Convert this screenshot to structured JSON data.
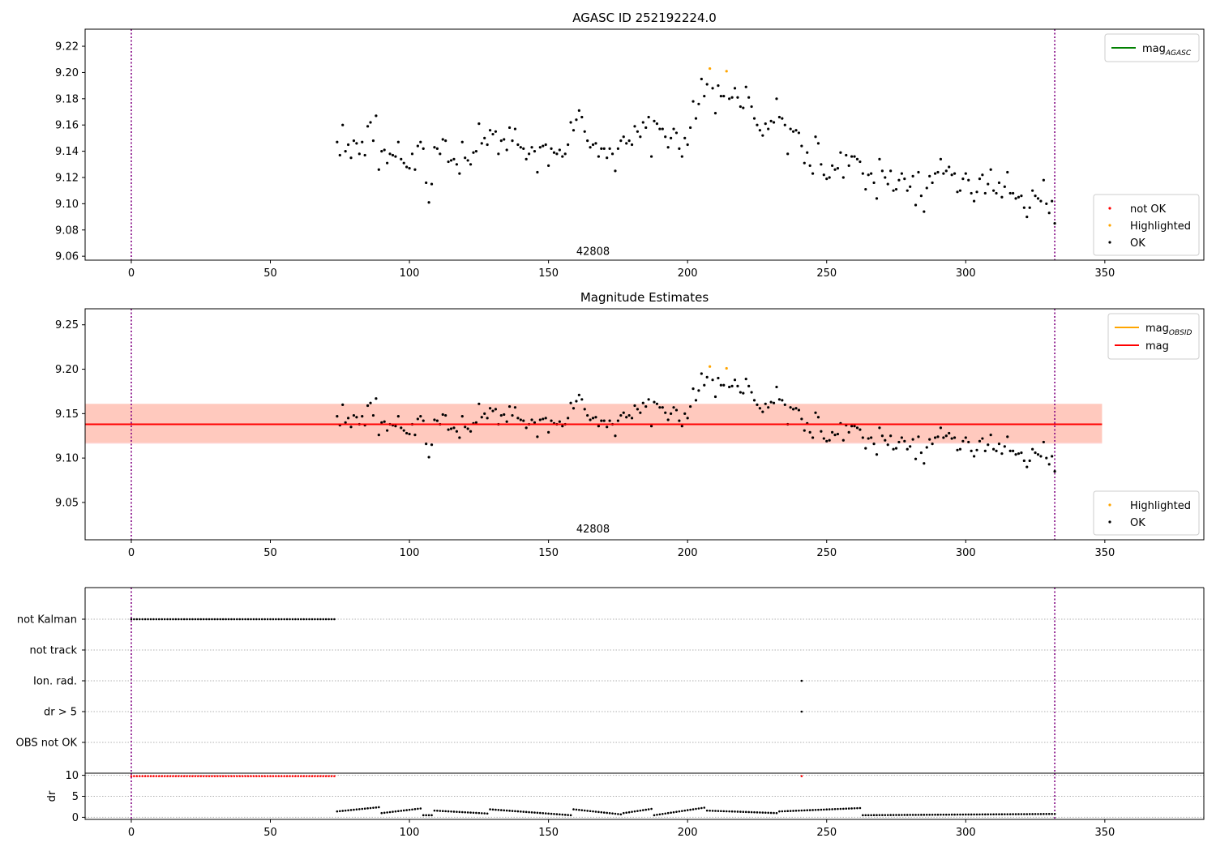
{
  "colors": {
    "ok": "#000000",
    "not_ok": "#ff0000",
    "highlighted": "#ffa500",
    "mag_agasc": "#008000",
    "mag_obsid": "#ffa500",
    "mag": "#ff0000",
    "band_obsid": "#ffa07a",
    "band_mag": "#ffc0cb",
    "vline": "#800080",
    "grid": "#b0b0b0"
  },
  "chart_data": [
    {
      "type": "scatter",
      "title": "AGASC ID 252192224.0",
      "xlim": [
        -16.6,
        385.6
      ],
      "ylim": [
        9.057,
        9.233
      ],
      "xticks": [
        0,
        50,
        100,
        150,
        200,
        250,
        300,
        350
      ],
      "yticks": [
        9.06,
        9.08,
        9.1,
        9.12,
        9.14,
        9.16,
        9.18,
        9.2,
        9.22
      ],
      "ytick_labels": [
        "9.06",
        "9.08",
        "9.10",
        "9.12",
        "9.14",
        "9.16",
        "9.18",
        "9.20",
        "9.22"
      ],
      "vlines": [
        0,
        332
      ],
      "annotation": {
        "text": "42808",
        "x": 166,
        "y": 9.064
      },
      "legend_lines": [
        {
          "name": "mag",
          "sub": "AGASC",
          "color": "#008000"
        }
      ],
      "legend_points": [
        {
          "name": "not OK",
          "color": "#ff0000"
        },
        {
          "name": "Highlighted",
          "color": "#ffa500"
        },
        {
          "name": "OK",
          "color": "#000000"
        }
      ],
      "legend_placement": [
        "upper right",
        "lower right"
      ],
      "highlighted": [
        [
          208,
          9.203
        ],
        [
          214,
          9.201
        ]
      ],
      "series_ok": [
        [
          74,
          9.147
        ],
        [
          75,
          9.137
        ],
        [
          76,
          9.16
        ],
        [
          77,
          9.14
        ],
        [
          78,
          9.145
        ],
        [
          79,
          9.135
        ],
        [
          80,
          9.148
        ],
        [
          81,
          9.146
        ],
        [
          82,
          9.138
        ],
        [
          83,
          9.147
        ],
        [
          84,
          9.137
        ],
        [
          85,
          9.159
        ],
        [
          86,
          9.162
        ],
        [
          87,
          9.148
        ],
        [
          88,
          9.167
        ],
        [
          89,
          9.126
        ],
        [
          90,
          9.14
        ],
        [
          91,
          9.141
        ],
        [
          92,
          9.131
        ],
        [
          93,
          9.138
        ],
        [
          94,
          9.137
        ],
        [
          95,
          9.136
        ],
        [
          96,
          9.147
        ],
        [
          97,
          9.134
        ],
        [
          98,
          9.131
        ],
        [
          99,
          9.128
        ],
        [
          100,
          9.127
        ],
        [
          101,
          9.138
        ],
        [
          102,
          9.126
        ],
        [
          103,
          9.144
        ],
        [
          104,
          9.147
        ],
        [
          105,
          9.142
        ],
        [
          106,
          9.116
        ],
        [
          107,
          9.101
        ],
        [
          108,
          9.115
        ],
        [
          109,
          9.143
        ],
        [
          110,
          9.142
        ],
        [
          111,
          9.138
        ],
        [
          112,
          9.149
        ],
        [
          113,
          9.148
        ],
        [
          114,
          9.132
        ],
        [
          115,
          9.133
        ],
        [
          116,
          9.134
        ],
        [
          117,
          9.13
        ],
        [
          118,
          9.123
        ],
        [
          119,
          9.147
        ],
        [
          120,
          9.135
        ],
        [
          121,
          9.133
        ],
        [
          122,
          9.13
        ],
        [
          123,
          9.139
        ],
        [
          124,
          9.14
        ],
        [
          125,
          9.161
        ],
        [
          126,
          9.146
        ],
        [
          127,
          9.15
        ],
        [
          128,
          9.145
        ],
        [
          129,
          9.156
        ],
        [
          130,
          9.153
        ],
        [
          131,
          9.155
        ],
        [
          132,
          9.138
        ],
        [
          133,
          9.148
        ],
        [
          134,
          9.149
        ],
        [
          135,
          9.141
        ],
        [
          136,
          9.158
        ],
        [
          137,
          9.148
        ],
        [
          138,
          9.157
        ],
        [
          139,
          9.145
        ],
        [
          140,
          9.143
        ],
        [
          141,
          9.142
        ],
        [
          142,
          9.134
        ],
        [
          143,
          9.138
        ],
        [
          144,
          9.143
        ],
        [
          145,
          9.14
        ],
        [
          146,
          9.124
        ],
        [
          147,
          9.143
        ],
        [
          148,
          9.144
        ],
        [
          149,
          9.145
        ],
        [
          150,
          9.129
        ],
        [
          151,
          9.142
        ],
        [
          152,
          9.139
        ],
        [
          153,
          9.138
        ],
        [
          154,
          9.141
        ],
        [
          155,
          9.136
        ],
        [
          156,
          9.138
        ],
        [
          157,
          9.145
        ],
        [
          158,
          9.162
        ],
        [
          159,
          9.156
        ],
        [
          160,
          9.164
        ],
        [
          161,
          9.171
        ],
        [
          162,
          9.166
        ],
        [
          163,
          9.155
        ],
        [
          164,
          9.148
        ],
        [
          165,
          9.143
        ],
        [
          166,
          9.145
        ],
        [
          167,
          9.146
        ],
        [
          168,
          9.136
        ],
        [
          169,
          9.142
        ],
        [
          170,
          9.142
        ],
        [
          171,
          9.135
        ],
        [
          172,
          9.142
        ],
        [
          173,
          9.138
        ],
        [
          174,
          9.125
        ],
        [
          175,
          9.142
        ],
        [
          176,
          9.148
        ],
        [
          177,
          9.151
        ],
        [
          178,
          9.146
        ],
        [
          179,
          9.148
        ],
        [
          180,
          9.145
        ],
        [
          181,
          9.159
        ],
        [
          182,
          9.155
        ],
        [
          183,
          9.151
        ],
        [
          184,
          9.162
        ],
        [
          185,
          9.158
        ],
        [
          186,
          9.166
        ],
        [
          187,
          9.136
        ],
        [
          188,
          9.163
        ],
        [
          189,
          9.161
        ],
        [
          190,
          9.157
        ],
        [
          191,
          9.157
        ],
        [
          192,
          9.151
        ],
        [
          193,
          9.143
        ],
        [
          194,
          9.15
        ],
        [
          195,
          9.157
        ],
        [
          196,
          9.154
        ],
        [
          197,
          9.142
        ],
        [
          198,
          9.136
        ],
        [
          199,
          9.15
        ],
        [
          200,
          9.145
        ],
        [
          201,
          9.158
        ],
        [
          202,
          9.178
        ],
        [
          203,
          9.165
        ],
        [
          204,
          9.176
        ],
        [
          205,
          9.195
        ],
        [
          206,
          9.182
        ],
        [
          207,
          9.191
        ],
        [
          209,
          9.188
        ],
        [
          210,
          9.169
        ],
        [
          211,
          9.19
        ],
        [
          212,
          9.182
        ],
        [
          213,
          9.182
        ],
        [
          215,
          9.18
        ],
        [
          216,
          9.181
        ],
        [
          217,
          9.188
        ],
        [
          218,
          9.181
        ],
        [
          219,
          9.174
        ],
        [
          220,
          9.173
        ],
        [
          221,
          9.189
        ],
        [
          222,
          9.181
        ],
        [
          223,
          9.174
        ],
        [
          224,
          9.165
        ],
        [
          225,
          9.16
        ],
        [
          226,
          9.156
        ],
        [
          227,
          9.152
        ],
        [
          228,
          9.161
        ],
        [
          229,
          9.157
        ],
        [
          230,
          9.163
        ],
        [
          231,
          9.162
        ],
        [
          232,
          9.18
        ],
        [
          233,
          9.166
        ],
        [
          234,
          9.165
        ],
        [
          235,
          9.16
        ],
        [
          236,
          9.138
        ],
        [
          237,
          9.157
        ],
        [
          238,
          9.155
        ],
        [
          239,
          9.156
        ],
        [
          240,
          9.154
        ],
        [
          241,
          9.144
        ],
        [
          242,
          9.131
        ],
        [
          243,
          9.139
        ],
        [
          244,
          9.129
        ],
        [
          245,
          9.123
        ],
        [
          246,
          9.151
        ],
        [
          247,
          9.146
        ],
        [
          248,
          9.13
        ],
        [
          249,
          9.122
        ],
        [
          250,
          9.119
        ],
        [
          251,
          9.12
        ],
        [
          252,
          9.129
        ],
        [
          253,
          9.126
        ],
        [
          254,
          9.127
        ],
        [
          255,
          9.139
        ],
        [
          256,
          9.12
        ],
        [
          257,
          9.137
        ],
        [
          258,
          9.129
        ],
        [
          259,
          9.136
        ],
        [
          260,
          9.136
        ],
        [
          261,
          9.134
        ],
        [
          262,
          9.132
        ],
        [
          263,
          9.123
        ],
        [
          264,
          9.111
        ],
        [
          265,
          9.122
        ],
        [
          266,
          9.123
        ],
        [
          267,
          9.116
        ],
        [
          268,
          9.104
        ],
        [
          269,
          9.134
        ],
        [
          270,
          9.125
        ],
        [
          271,
          9.12
        ],
        [
          272,
          9.115
        ],
        [
          273,
          9.125
        ],
        [
          274,
          9.11
        ],
        [
          275,
          9.111
        ],
        [
          276,
          9.118
        ],
        [
          277,
          9.123
        ],
        [
          278,
          9.119
        ],
        [
          279,
          9.11
        ],
        [
          280,
          9.113
        ],
        [
          281,
          9.121
        ],
        [
          282,
          9.099
        ],
        [
          283,
          9.124
        ],
        [
          284,
          9.106
        ],
        [
          285,
          9.094
        ],
        [
          286,
          9.112
        ],
        [
          287,
          9.121
        ],
        [
          288,
          9.116
        ],
        [
          289,
          9.123
        ],
        [
          290,
          9.124
        ],
        [
          291,
          9.134
        ],
        [
          292,
          9.123
        ],
        [
          293,
          9.125
        ],
        [
          294,
          9.128
        ],
        [
          295,
          9.122
        ],
        [
          296,
          9.123
        ],
        [
          297,
          9.109
        ],
        [
          298,
          9.11
        ],
        [
          299,
          9.119
        ],
        [
          300,
          9.123
        ],
        [
          301,
          9.118
        ],
        [
          302,
          9.108
        ],
        [
          303,
          9.102
        ],
        [
          304,
          9.109
        ],
        [
          305,
          9.119
        ],
        [
          306,
          9.122
        ],
        [
          307,
          9.108
        ],
        [
          308,
          9.115
        ],
        [
          309,
          9.126
        ],
        [
          310,
          9.11
        ],
        [
          311,
          9.108
        ],
        [
          312,
          9.116
        ],
        [
          313,
          9.105
        ],
        [
          314,
          9.113
        ],
        [
          315,
          9.124
        ],
        [
          316,
          9.108
        ],
        [
          317,
          9.108
        ],
        [
          318,
          9.104
        ],
        [
          319,
          9.105
        ],
        [
          320,
          9.106
        ],
        [
          321,
          9.097
        ],
        [
          322,
          9.09
        ],
        [
          323,
          9.097
        ],
        [
          324,
          9.11
        ],
        [
          325,
          9.106
        ],
        [
          326,
          9.104
        ],
        [
          327,
          9.102
        ],
        [
          328,
          9.118
        ],
        [
          329,
          9.1
        ],
        [
          330,
          9.093
        ],
        [
          331,
          9.102
        ],
        [
          332,
          9.085
        ]
      ]
    },
    {
      "type": "scatter",
      "title": "Magnitude Estimates",
      "xlim": [
        -16.6,
        385.6
      ],
      "ylim": [
        9.008,
        9.268
      ],
      "xticks": [
        0,
        50,
        100,
        150,
        200,
        250,
        300,
        350
      ],
      "yticks": [
        9.05,
        9.1,
        9.15,
        9.2,
        9.25
      ],
      "ytick_labels": [
        "9.05",
        "9.10",
        "9.15",
        "9.20",
        "9.25"
      ],
      "vlines": [
        0,
        332
      ],
      "annotation": {
        "text": "42808",
        "x": 166,
        "y": 9.021
      },
      "hline": {
        "y": 9.138,
        "x0": -16.6,
        "x1": 349
      },
      "band_mag": {
        "y0": 9.116,
        "y1": 9.161,
        "x0": -16.6,
        "x1": 349
      },
      "band_obsid": {
        "y0": 9.117,
        "y1": 9.161,
        "x0": -16.6,
        "x1": 349
      },
      "legend_lines": [
        {
          "name": "mag",
          "sub": "OBSID",
          "color": "#ffa500"
        },
        {
          "name": "mag",
          "sub": "",
          "color": "#ff0000"
        }
      ],
      "legend_points": [
        {
          "name": "Highlighted",
          "color": "#ffa500"
        },
        {
          "name": "OK",
          "color": "#000000"
        }
      ],
      "legend_placement": [
        "upper right",
        "lower right"
      ]
    },
    {
      "type": "scatter",
      "title": "",
      "xlim": [
        -16.6,
        385.6
      ],
      "xticks": [
        0,
        50,
        100,
        150,
        200,
        250,
        300,
        350
      ],
      "vlines": [
        0,
        332
      ],
      "flag_categories": [
        "not Kalman",
        "not track",
        "Ion. rad.",
        "dr > 5",
        "OBS not OK"
      ],
      "flags": {
        "not Kalman": {
          "from": 0,
          "to": 73
        },
        "Ion. rad.": {
          "points": [
            241
          ]
        },
        "dr > 5": {
          "points": [
            241
          ]
        }
      }
    },
    {
      "type": "scatter",
      "title": "",
      "ylabel": "dr",
      "xlim": [
        -16.6,
        385.6
      ],
      "ylim": [
        -0.5,
        10.5
      ],
      "xticks": [
        0,
        50,
        100,
        150,
        200,
        250,
        300,
        350
      ],
      "yticks": [
        0,
        5,
        10
      ],
      "ytick_labels": [
        "0",
        "5",
        "10"
      ],
      "vlines": [
        0,
        332
      ],
      "red_points": {
        "from": 0,
        "to": 73,
        "y": 9.8,
        "extra": [
          241
        ]
      },
      "dr_segments": [
        {
          "from": 74,
          "to": 89,
          "y0": 1.4,
          "y1": 2.4
        },
        {
          "from": 90,
          "to": 104,
          "y0": 1.0,
          "y1": 2.1
        },
        {
          "from": 105,
          "to": 108,
          "y0": 0.5,
          "y1": 0.5
        },
        {
          "from": 109,
          "to": 128,
          "y0": 1.6,
          "y1": 0.9
        },
        {
          "from": 129,
          "to": 158,
          "y0": 1.9,
          "y1": 0.5
        },
        {
          "from": 159,
          "to": 176,
          "y0": 1.9,
          "y1": 0.7
        },
        {
          "from": 177,
          "to": 187,
          "y0": 1.0,
          "y1": 2.0
        },
        {
          "from": 188,
          "to": 206,
          "y0": 0.5,
          "y1": 2.3
        },
        {
          "from": 207,
          "to": 232,
          "y0": 1.6,
          "y1": 1.0
        },
        {
          "from": 233,
          "to": 262,
          "y0": 1.4,
          "y1": 2.2
        },
        {
          "from": 263,
          "to": 332,
          "y0": 0.5,
          "y1": 0.8
        }
      ]
    }
  ]
}
